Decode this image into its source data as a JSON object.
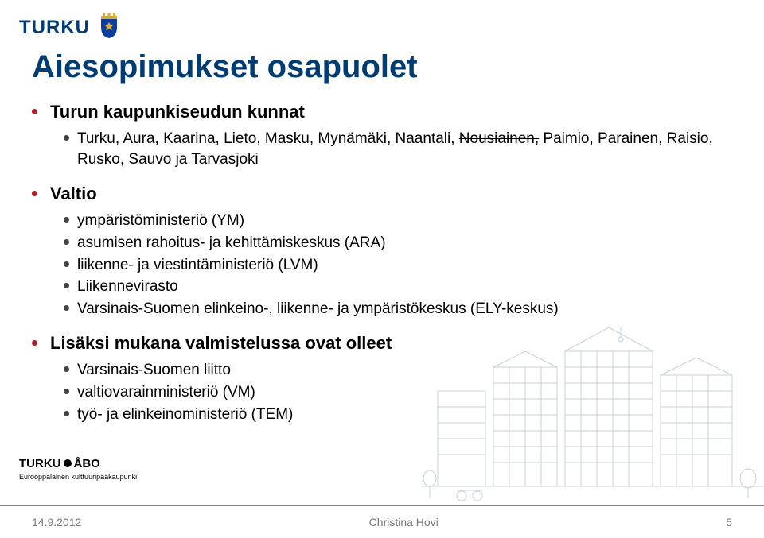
{
  "brand": {
    "name": "TURKU",
    "crest_color_shield": "#0b3ea0",
    "crest_color_crown": "#d4af37"
  },
  "title": {
    "text": "Aiesopimukset osapuolet",
    "color": "#003c71",
    "fontsize": 40,
    "fontweight": 700
  },
  "bullets": [
    {
      "text": "Turun kaupunkiseudun kunnat",
      "children": [
        {
          "lineParts": [
            {
              "text": "Turku, Aura, Kaarina, Lieto, Masku, Mynämäki, Naantali, "
            },
            {
              "text": "Nousiainen,",
              "strike": true
            },
            {
              "text": " Paimio, Parainen, Raisio, Rusko, Sauvo ja Tarvasjoki"
            }
          ]
        }
      ]
    },
    {
      "text": "Valtio",
      "children": [
        {
          "text": "ympäristöministeriö (YM)"
        },
        {
          "text": "asumisen rahoitus- ja kehittämiskeskus (ARA)"
        },
        {
          "text": "liikenne- ja viestintäministeriö (LVM)"
        },
        {
          "text": "Liikennevirasto"
        },
        {
          "text": "Varsinais-Suomen elinkeino-, liikenne- ja ympäristökeskus (ELY-keskus)"
        }
      ]
    },
    {
      "text": "Lisäksi mukana valmistelussa ovat olleet",
      "children": [
        {
          "text": "Varsinais-Suomen liitto"
        },
        {
          "text": "valtiovarainministeriö (VM)"
        },
        {
          "text": "työ- ja elinkeinoministeriö (TEM)"
        }
      ]
    }
  ],
  "footer_logo": {
    "line1a": "TURKU",
    "line1b": "ÅBO",
    "line2": "Eurooppalainen kulttuuripääkaupunki"
  },
  "footer": {
    "date": "14.9.2012",
    "author": "Christina Hovi",
    "page": "5"
  },
  "styles": {
    "l1_bullet_color": "#b01f24",
    "l2_bullet_color": "#444444",
    "l1_fontsize": 22,
    "l2_fontsize": 19,
    "footer_color": "#777777",
    "divider_color": "#888888",
    "background_color": "#ffffff"
  }
}
